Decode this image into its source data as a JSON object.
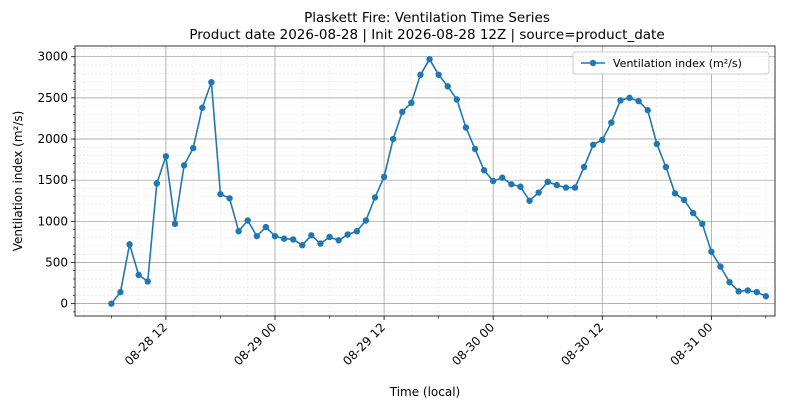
{
  "chart_data": {
    "type": "line",
    "title": "Plaskett Fire: Ventilation Time Series",
    "subtitle": "Product date 2026-08-28 | Init 2026-08-28 12Z | source=product_date",
    "xlabel": "Time (local)",
    "ylabel": "Ventilation index (m²/s)",
    "x_start": "2026-08-28 06:00",
    "x_step_hours": 1,
    "xlim": [
      "2026-08-28 02:00",
      "2026-08-31 07:00"
    ],
    "ylim": [
      -150,
      3130
    ],
    "yticks": [
      0,
      500,
      1000,
      1500,
      2000,
      2500,
      3000
    ],
    "xticks": [
      {
        "time": "2026-08-28 12:00",
        "label": "08-28 12"
      },
      {
        "time": "2026-08-29 00:00",
        "label": "08-29 00"
      },
      {
        "time": "2026-08-29 12:00",
        "label": "08-29 12"
      },
      {
        "time": "2026-08-30 00:00",
        "label": "08-30 00"
      },
      {
        "time": "2026-08-30 12:00",
        "label": "08-30 12"
      },
      {
        "time": "2026-08-31 00:00",
        "label": "08-31 00"
      }
    ],
    "grid": true,
    "legend_position": "top-right",
    "series": [
      {
        "name": "Ventilation index (m²/s)",
        "color": "#1f77b4",
        "values": [
          0,
          140,
          720,
          350,
          270,
          1460,
          1790,
          970,
          1680,
          1890,
          2380,
          2690,
          1330,
          1280,
          880,
          1010,
          820,
          930,
          820,
          790,
          780,
          710,
          830,
          730,
          810,
          770,
          840,
          880,
          1010,
          1290,
          1540,
          2000,
          2330,
          2440,
          2780,
          2970,
          2780,
          2640,
          2480,
          2140,
          1880,
          1620,
          1490,
          1530,
          1450,
          1420,
          1250,
          1350,
          1480,
          1440,
          1410,
          1410,
          1660,
          1930,
          1990,
          2200,
          2470,
          2500,
          2460,
          2350,
          1940,
          1660,
          1340,
          1260,
          1100,
          970,
          630,
          450,
          260,
          150,
          160,
          140,
          90
        ]
      }
    ]
  }
}
